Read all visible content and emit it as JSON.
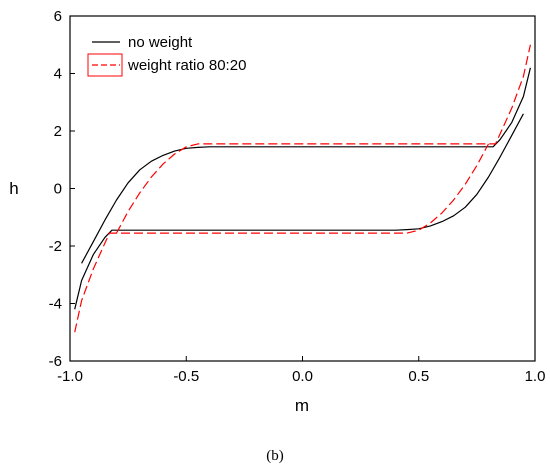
{
  "chart_data": {
    "type": "line",
    "xlabel": "m",
    "ylabel": "h",
    "xlim": [
      -1.0,
      1.0
    ],
    "ylim": [
      -6,
      6
    ],
    "x_ticks": [
      "-1.0",
      "-0.5",
      "0.0",
      "0.5",
      "1.0"
    ],
    "y_ticks": [
      "-6",
      "-4",
      "-2",
      "0",
      "2",
      "4",
      "6"
    ],
    "grid": false,
    "legend_position": "top-left",
    "caption": "(b)",
    "series": [
      {
        "name": "no weight",
        "color": "#000000",
        "style": "solid",
        "upper_branch": {
          "x": [
            -0.95,
            -0.9,
            -0.85,
            -0.8,
            -0.75,
            -0.7,
            -0.65,
            -0.6,
            -0.55,
            -0.5,
            -0.45,
            -0.4,
            0.0,
            0.4,
            0.8,
            0.82,
            0.85,
            0.9,
            0.95,
            0.98
          ],
          "y": [
            -2.6,
            -1.85,
            -1.1,
            -0.4,
            0.2,
            0.65,
            0.95,
            1.15,
            1.3,
            1.4,
            1.43,
            1.45,
            1.45,
            1.45,
            1.45,
            1.45,
            1.7,
            2.3,
            3.2,
            4.2
          ]
        },
        "lower_branch": {
          "x": [
            -0.98,
            -0.95,
            -0.9,
            -0.85,
            -0.82,
            -0.8,
            -0.4,
            0.0,
            0.4,
            0.45,
            0.5,
            0.55,
            0.6,
            0.65,
            0.7,
            0.75,
            0.8,
            0.85,
            0.9,
            0.95
          ],
          "y": [
            -4.2,
            -3.2,
            -2.3,
            -1.7,
            -1.45,
            -1.45,
            -1.45,
            -1.45,
            -1.45,
            -1.43,
            -1.4,
            -1.3,
            -1.15,
            -0.95,
            -0.65,
            -0.2,
            0.4,
            1.1,
            1.85,
            2.6
          ]
        }
      },
      {
        "name": "weight ratio 80:20",
        "color": "#ff0000",
        "style": "dashed",
        "upper_branch": {
          "x": [
            -0.8,
            -0.75,
            -0.7,
            -0.65,
            -0.6,
            -0.55,
            -0.5,
            -0.45,
            -0.4,
            0.0,
            0.4,
            0.8,
            0.83,
            0.85,
            0.9,
            0.95,
            0.98
          ],
          "y": [
            -1.55,
            -0.8,
            -0.15,
            0.4,
            0.85,
            1.2,
            1.45,
            1.55,
            1.55,
            1.55,
            1.55,
            1.55,
            1.55,
            1.9,
            2.8,
            3.9,
            5.0
          ]
        },
        "lower_branch": {
          "x": [
            -0.98,
            -0.95,
            -0.9,
            -0.85,
            -0.83,
            -0.8,
            -0.4,
            0.0,
            0.4,
            0.45,
            0.5,
            0.55,
            0.6,
            0.65,
            0.7,
            0.75,
            0.8
          ],
          "y": [
            -5.0,
            -3.9,
            -2.8,
            -1.9,
            -1.55,
            -1.55,
            -1.55,
            -1.55,
            -1.55,
            -1.55,
            -1.45,
            -1.2,
            -0.85,
            -0.4,
            0.15,
            0.8,
            1.55
          ]
        }
      }
    ]
  }
}
